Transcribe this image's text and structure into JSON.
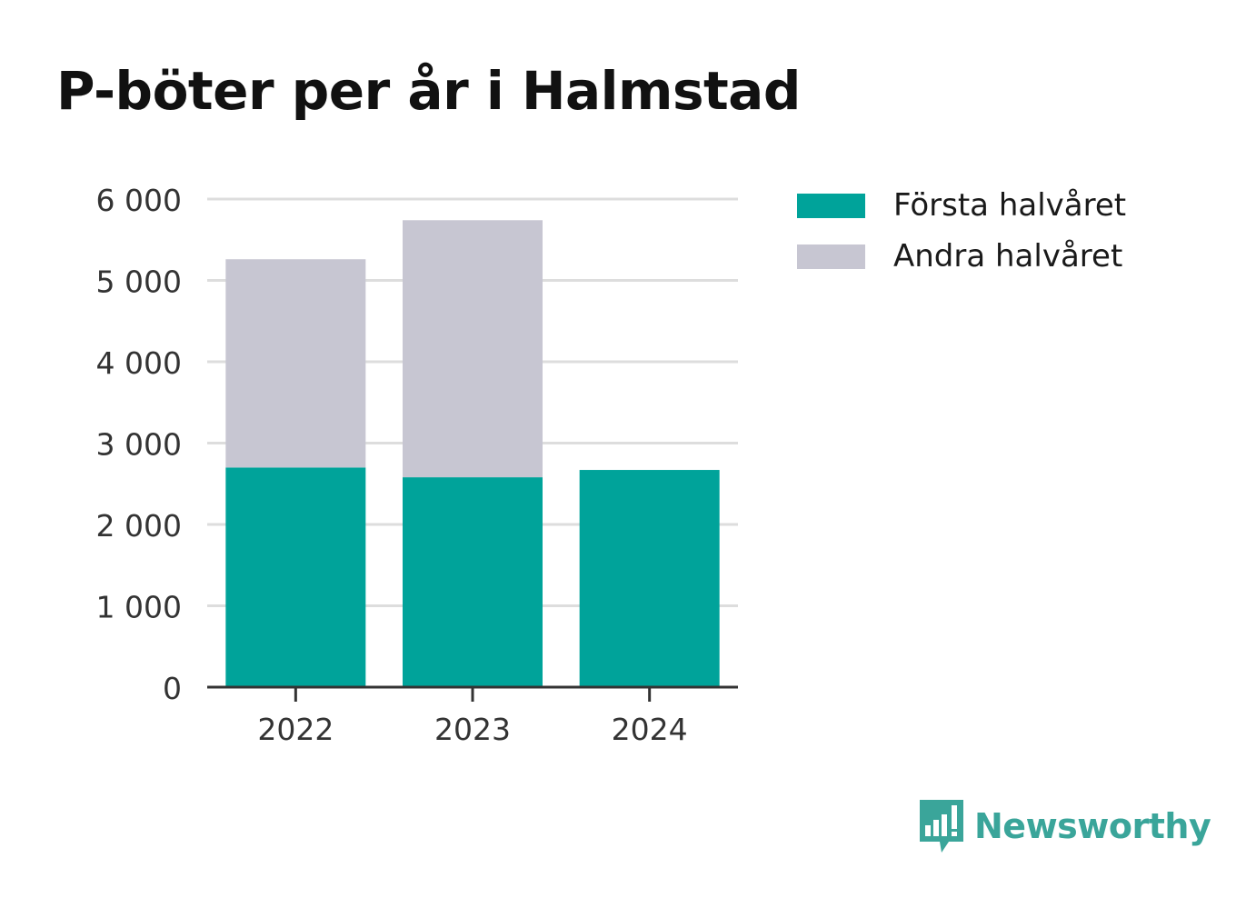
{
  "colors": {
    "first_half": "#00a39a",
    "second_half": "#c7c6d2",
    "grid": "#dddddd",
    "axis": "#333333",
    "brand": "#3aa59a"
  },
  "brand": {
    "name": "Newsworthy",
    "icon": "bar-chart-speech-bubble-icon"
  },
  "chart_data": {
    "type": "bar",
    "stacked": true,
    "title": "P-böter per år i Halmstad",
    "xlabel": "",
    "ylabel": "",
    "categories": [
      "2022",
      "2023",
      "2024"
    ],
    "series": [
      {
        "name": "Första halvåret",
        "values": [
          2700,
          2580,
          2670
        ]
      },
      {
        "name": "Andra halvåret",
        "values": [
          2560,
          3160,
          0
        ]
      }
    ],
    "ylim": [
      0,
      6000
    ],
    "yticks": [
      0,
      1000,
      2000,
      3000,
      4000,
      5000,
      6000
    ],
    "ytick_labels": [
      "0",
      "1 000",
      "2 000",
      "3 000",
      "4 000",
      "5 000",
      "6 000"
    ],
    "grid": true,
    "legend_position": "right"
  }
}
